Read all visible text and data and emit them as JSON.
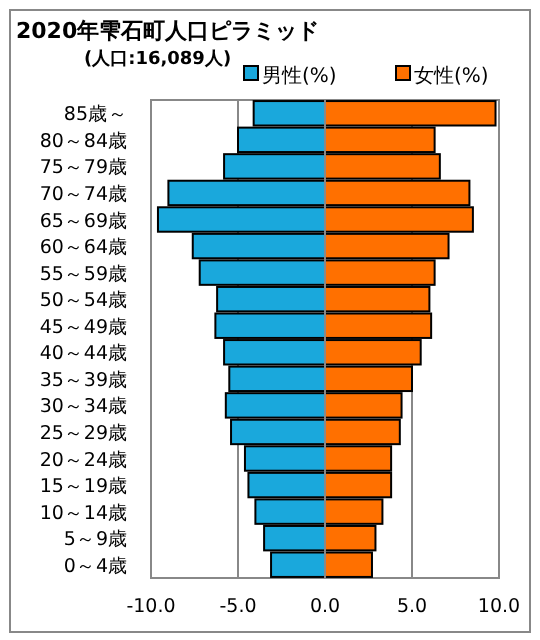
{
  "chart_data": {
    "type": "bar",
    "orientation": "horizontal",
    "stacked": true,
    "title": "2020年雫石町人口ピラミッド",
    "subtitle": "(人口:16,089人)",
    "categories": [
      "85歳～",
      "80～84歳",
      "75～79歳",
      "70～74歳",
      "65～69歳",
      "60～64歳",
      "55～59歳",
      "50～54歳",
      "45～49歳",
      "40～44歳",
      "35～39歳",
      "30～34歳",
      "25～29歳",
      "20～24歳",
      "15～19歳",
      "10～14歳",
      "5～9歳",
      "0～4歳"
    ],
    "series": [
      {
        "name": "男性(%)",
        "color": "#1aa8dc",
        "values": [
          -4.1,
          -5.0,
          -5.8,
          -9.0,
          -9.6,
          -7.6,
          -7.2,
          -6.2,
          -6.3,
          -5.8,
          -5.5,
          -5.7,
          -5.4,
          -4.6,
          -4.4,
          -4.0,
          -3.5,
          -3.1
        ]
      },
      {
        "name": "女性(%)",
        "color": "#ff7000",
        "values": [
          9.8,
          6.3,
          6.6,
          8.3,
          8.5,
          7.1,
          6.3,
          6.0,
          6.1,
          5.5,
          5.0,
          4.4,
          4.3,
          3.8,
          3.8,
          3.3,
          2.9,
          2.7
        ]
      }
    ],
    "xlim": [
      -10,
      10
    ],
    "xticks": [
      {
        "value": -10,
        "label": "-10.0"
      },
      {
        "value": -5,
        "label": "-5.0"
      },
      {
        "value": 0,
        "label": "0.0"
      },
      {
        "value": 5,
        "label": "5.0"
      },
      {
        "value": 10,
        "label": "10.0"
      }
    ],
    "grid": "x",
    "legend": "top right"
  }
}
